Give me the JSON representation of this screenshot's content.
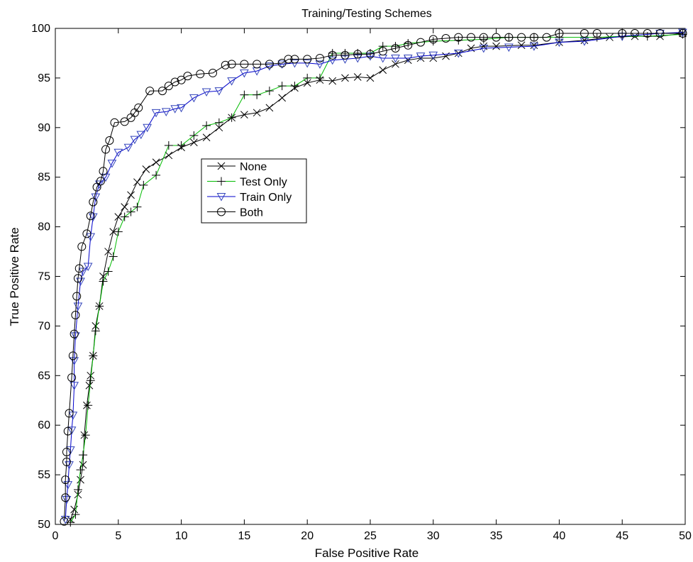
{
  "chart_data": {
    "type": "line",
    "title": "Training/Testing Schemes",
    "xlabel": "False Positive Rate",
    "ylabel": "True Positive Rate",
    "xlim": [
      0,
      50
    ],
    "ylim": [
      50,
      100
    ],
    "xticks": [
      0,
      5,
      10,
      15,
      20,
      25,
      30,
      35,
      40,
      45,
      50
    ],
    "yticks": [
      50,
      55,
      60,
      65,
      70,
      75,
      80,
      85,
      90,
      95,
      100
    ],
    "grid": false,
    "legend_position": "center-left",
    "series": [
      {
        "name": "None",
        "marker": "x",
        "line_color": "#000000",
        "marker_color": "#000000",
        "points": [
          [
            1.2,
            50.5
          ],
          [
            1.5,
            51.5
          ],
          [
            1.8,
            53
          ],
          [
            2,
            54.5
          ],
          [
            2.2,
            56
          ],
          [
            2.3,
            59
          ],
          [
            2.5,
            62
          ],
          [
            2.7,
            64
          ],
          [
            2.8,
            65
          ],
          [
            3,
            67
          ],
          [
            3.2,
            70
          ],
          [
            3.5,
            72
          ],
          [
            3.8,
            75
          ],
          [
            4.2,
            77.5
          ],
          [
            4.6,
            79.5
          ],
          [
            5,
            81
          ],
          [
            5.5,
            82
          ],
          [
            6,
            83.2
          ],
          [
            6.5,
            84.5
          ],
          [
            7.2,
            85.8
          ],
          [
            8,
            86.5
          ],
          [
            9,
            87.2
          ],
          [
            10,
            88
          ],
          [
            11,
            88.5
          ],
          [
            12,
            89
          ],
          [
            13,
            90
          ],
          [
            14,
            91
          ],
          [
            15,
            91.3
          ],
          [
            16,
            91.5
          ],
          [
            17,
            92
          ],
          [
            18,
            93
          ],
          [
            19,
            94
          ],
          [
            20,
            94.5
          ],
          [
            21,
            94.8
          ],
          [
            22,
            94.7
          ],
          [
            23,
            95
          ],
          [
            24,
            95.1
          ],
          [
            25,
            95
          ],
          [
            26,
            95.8
          ],
          [
            27,
            96.4
          ],
          [
            28,
            96.8
          ],
          [
            29,
            97
          ],
          [
            30,
            97
          ],
          [
            31,
            97.2
          ],
          [
            32,
            97.5
          ],
          [
            33,
            98
          ],
          [
            34,
            98.2
          ],
          [
            35,
            98.2
          ],
          [
            37,
            98.3
          ],
          [
            38,
            98.3
          ],
          [
            40,
            98.6
          ],
          [
            42,
            98.8
          ],
          [
            44,
            99.1
          ],
          [
            46,
            99.2
          ],
          [
            48,
            99.2
          ],
          [
            49.8,
            99.5
          ]
        ]
      },
      {
        "name": "Test Only",
        "marker": "+",
        "line_color": "#00bb00",
        "marker_color": "#000000",
        "points": [
          [
            1.2,
            50.2
          ],
          [
            1.6,
            51
          ],
          [
            1.8,
            53.5
          ],
          [
            2,
            55.5
          ],
          [
            2.2,
            57
          ],
          [
            2.4,
            59
          ],
          [
            2.6,
            62
          ],
          [
            2.8,
            64.5
          ],
          [
            3,
            67
          ],
          [
            3.2,
            69.5
          ],
          [
            3.5,
            72
          ],
          [
            3.8,
            74.5
          ],
          [
            4.2,
            75.5
          ],
          [
            4.6,
            77
          ],
          [
            5,
            79.5
          ],
          [
            5.5,
            81
          ],
          [
            6,
            81.5
          ],
          [
            6.5,
            82
          ],
          [
            7,
            84.2
          ],
          [
            8,
            85.2
          ],
          [
            9,
            88.2
          ],
          [
            10,
            88.2
          ],
          [
            11,
            89.2
          ],
          [
            12,
            90.2
          ],
          [
            13,
            90.5
          ],
          [
            14,
            91
          ],
          [
            15,
            93.3
          ],
          [
            16,
            93.3
          ],
          [
            17,
            93.7
          ],
          [
            18,
            94.2
          ],
          [
            19,
            94.2
          ],
          [
            20,
            95
          ],
          [
            21,
            95
          ],
          [
            22,
            97.5
          ],
          [
            23,
            97.5
          ],
          [
            24,
            97.5
          ],
          [
            25,
            97.5
          ],
          [
            26,
            98.2
          ],
          [
            27,
            98.2
          ],
          [
            28,
            98.5
          ],
          [
            30,
            98.7
          ],
          [
            32,
            98.8
          ],
          [
            34,
            98.9
          ],
          [
            36,
            99.1
          ],
          [
            38,
            99.1
          ],
          [
            40,
            99.1
          ],
          [
            43,
            99.1
          ],
          [
            45,
            99.2
          ],
          [
            47,
            99.2
          ],
          [
            49.8,
            99.4
          ]
        ]
      },
      {
        "name": "Train Only",
        "marker": "triangle-down",
        "line_color": "#0000cc",
        "marker_color": "#3344bb",
        "points": [
          [
            0.8,
            50.5
          ],
          [
            0.9,
            52.5
          ],
          [
            1,
            54
          ],
          [
            1.1,
            56
          ],
          [
            1.2,
            57.5
          ],
          [
            1.3,
            59.5
          ],
          [
            1.4,
            61
          ],
          [
            1.5,
            64
          ],
          [
            1.5,
            66.5
          ],
          [
            1.6,
            69
          ],
          [
            1.8,
            72
          ],
          [
            2,
            74.5
          ],
          [
            2.2,
            75.5
          ],
          [
            2.6,
            76
          ],
          [
            2.8,
            79
          ],
          [
            3,
            81
          ],
          [
            3.2,
            83
          ],
          [
            3.5,
            84.3
          ],
          [
            4,
            85
          ],
          [
            4.5,
            86.4
          ],
          [
            5,
            87.5
          ],
          [
            5.8,
            88
          ],
          [
            6.3,
            88.8
          ],
          [
            6.8,
            89.3
          ],
          [
            7.3,
            90
          ],
          [
            8,
            91.5
          ],
          [
            8.8,
            91.6
          ],
          [
            9.5,
            91.9
          ],
          [
            10,
            92
          ],
          [
            11,
            93
          ],
          [
            12,
            93.6
          ],
          [
            13,
            93.7
          ],
          [
            14,
            94.7
          ],
          [
            15,
            95.5
          ],
          [
            16,
            95.7
          ],
          [
            17,
            96.2
          ],
          [
            18,
            96.4
          ],
          [
            19,
            96.5
          ],
          [
            20,
            96.5
          ],
          [
            21,
            96.4
          ],
          [
            22,
            96.8
          ],
          [
            23,
            96.9
          ],
          [
            24,
            97
          ],
          [
            25,
            97.2
          ],
          [
            26,
            97
          ],
          [
            27,
            97
          ],
          [
            28,
            97
          ],
          [
            29,
            97.2
          ],
          [
            30,
            97.3
          ],
          [
            32,
            97.5
          ],
          [
            34,
            98
          ],
          [
            36,
            98.1
          ],
          [
            38,
            98.2
          ],
          [
            40,
            98.6
          ],
          [
            42,
            98.7
          ],
          [
            45,
            99.2
          ],
          [
            48,
            99.5
          ],
          [
            49.8,
            99.6
          ]
        ]
      },
      {
        "name": "Both",
        "marker": "circle",
        "line_color": "#000000",
        "marker_color": "#000000",
        "points": [
          [
            0.7,
            50.3
          ],
          [
            0.8,
            52.7
          ],
          [
            0.8,
            54.5
          ],
          [
            0.9,
            56.3
          ],
          [
            0.9,
            57.3
          ],
          [
            1,
            59.4
          ],
          [
            1.1,
            61.2
          ],
          [
            1.3,
            64.8
          ],
          [
            1.4,
            67
          ],
          [
            1.5,
            69.2
          ],
          [
            1.6,
            71.1
          ],
          [
            1.7,
            73
          ],
          [
            1.8,
            74.8
          ],
          [
            1.9,
            75.8
          ],
          [
            2.1,
            78
          ],
          [
            2.5,
            79.3
          ],
          [
            2.8,
            81.1
          ],
          [
            3,
            82.5
          ],
          [
            3.3,
            84
          ],
          [
            3.6,
            84.6
          ],
          [
            3.8,
            85.6
          ],
          [
            4,
            87.8
          ],
          [
            4.3,
            88.7
          ],
          [
            4.7,
            90.5
          ],
          [
            5.5,
            90.6
          ],
          [
            6,
            91
          ],
          [
            6.3,
            91.5
          ],
          [
            6.6,
            92
          ],
          [
            7.5,
            93.7
          ],
          [
            8.5,
            93.7
          ],
          [
            9,
            94.2
          ],
          [
            9.5,
            94.6
          ],
          [
            10,
            94.8
          ],
          [
            10.5,
            95.2
          ],
          [
            11.5,
            95.4
          ],
          [
            12.5,
            95.5
          ],
          [
            13.5,
            96.3
          ],
          [
            14,
            96.4
          ],
          [
            15,
            96.4
          ],
          [
            16,
            96.4
          ],
          [
            17,
            96.4
          ],
          [
            18,
            96.5
          ],
          [
            18.5,
            96.9
          ],
          [
            19,
            96.9
          ],
          [
            20,
            96.9
          ],
          [
            21,
            97
          ],
          [
            22,
            97.3
          ],
          [
            23,
            97.3
          ],
          [
            24,
            97.4
          ],
          [
            25,
            97.4
          ],
          [
            26,
            97.7
          ],
          [
            27,
            98
          ],
          [
            28,
            98.3
          ],
          [
            29,
            98.6
          ],
          [
            30,
            98.9
          ],
          [
            31,
            99
          ],
          [
            32,
            99.1
          ],
          [
            33,
            99.1
          ],
          [
            34,
            99.1
          ],
          [
            35,
            99.1
          ],
          [
            36,
            99.1
          ],
          [
            37,
            99.1
          ],
          [
            38,
            99.1
          ],
          [
            39,
            99.1
          ],
          [
            40,
            99.5
          ],
          [
            42,
            99.5
          ],
          [
            43,
            99.5
          ],
          [
            45,
            99.5
          ],
          [
            46,
            99.5
          ],
          [
            47,
            99.5
          ],
          [
            48,
            99.5
          ],
          [
            49.8,
            99.5
          ]
        ]
      }
    ]
  }
}
